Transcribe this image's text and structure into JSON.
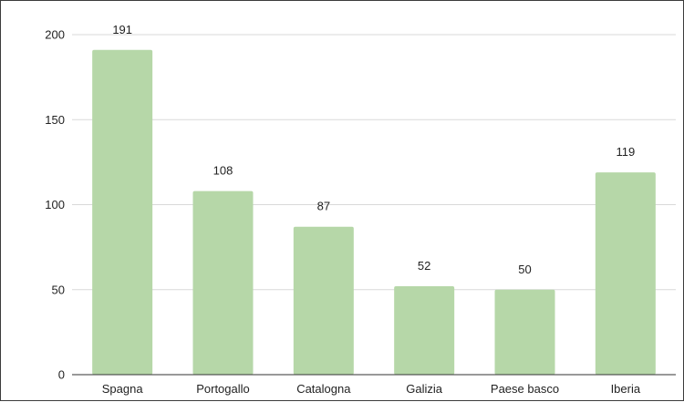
{
  "chart_data": {
    "type": "bar",
    "categories": [
      "Spagna",
      "Portogallo",
      "Catalogna",
      "Galizia",
      "Paese basco",
      "Iberia"
    ],
    "values": [
      191,
      108,
      87,
      52,
      50,
      119
    ],
    "title": "",
    "xlabel": "",
    "ylabel": "",
    "ylim": [
      0,
      200
    ],
    "yticks": [
      0,
      50,
      100,
      150,
      200
    ],
    "grid": true,
    "legend": "none",
    "bar_color": "#b6d7a8",
    "data_labels": true
  }
}
